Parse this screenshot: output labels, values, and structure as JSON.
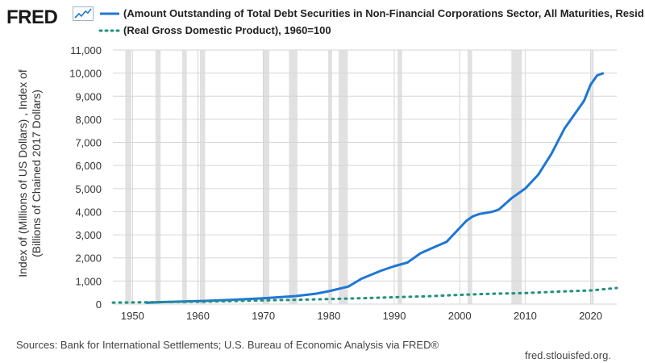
{
  "brand": {
    "logo_text": "FRED"
  },
  "legend": [
    {
      "label": "(Amount Outstanding of Total Debt Securities in Non-Financial Corporations Sector, All Maturities, Resid",
      "color": "#1f77d4",
      "style": "solid"
    },
    {
      "label": "(Real Gross Domestic Product), 1960=100",
      "color": "#23907f",
      "style": "dotted"
    }
  ],
  "footer": {
    "sources": "Sources: Bank for International Settlements; U.S. Bureau of Economic Analysis via FRED®",
    "url": "fred.stlouisfed.org."
  },
  "chart_data": {
    "type": "line",
    "ylabel_line1": "Index of (Millions of US Dollars) , Index of",
    "ylabel_line2": "(Billions of Chained 2017 Dollars)",
    "xlim": [
      1947,
      2024
    ],
    "ylim": [
      0,
      11000
    ],
    "xticks": [
      1950,
      1960,
      1970,
      1980,
      1990,
      2000,
      2010,
      2020
    ],
    "xtick_labels": [
      "1950",
      "1960",
      "1970",
      "1980",
      "1990",
      "2000",
      "2010",
      "2020"
    ],
    "yticks": [
      0,
      1000,
      2000,
      3000,
      4000,
      5000,
      6000,
      7000,
      8000,
      9000,
      10000,
      11000
    ],
    "ytick_labels": [
      "0",
      "1,000",
      "2,000",
      "3,000",
      "4,000",
      "5,000",
      "6,000",
      "7,000",
      "8,000",
      "9,000",
      "10,000",
      "11,000"
    ],
    "grid": true,
    "recessions": [
      [
        1948.9,
        1949.8
      ],
      [
        1953.5,
        1954.3
      ],
      [
        1957.6,
        1958.3
      ],
      [
        1960.3,
        1961.1
      ],
      [
        1969.9,
        1970.9
      ],
      [
        1973.9,
        1975.2
      ],
      [
        1980.0,
        1980.5
      ],
      [
        1981.5,
        1982.9
      ],
      [
        1990.5,
        1991.2
      ],
      [
        2001.2,
        2001.9
      ],
      [
        2007.9,
        2009.5
      ],
      [
        2020.1,
        2020.4
      ]
    ],
    "series": [
      {
        "name": "Debt securities, non-financial corporations",
        "color": "#1f77d4",
        "style": "solid",
        "x": [
          1952,
          1955,
          1960,
          1965,
          1970,
          1975,
          1978,
          1980,
          1983,
          1985,
          1988,
          1990,
          1992,
          1994,
          1996,
          1998,
          2000,
          2001,
          2002,
          2003,
          2004,
          2005,
          2006,
          2008,
          2010,
          2012,
          2014,
          2016,
          2018,
          2019,
          2020,
          2021,
          2022
        ],
        "y": [
          60,
          90,
          130,
          180,
          250,
          350,
          450,
          560,
          760,
          1100,
          1450,
          1640,
          1800,
          2200,
          2450,
          2700,
          3300,
          3600,
          3800,
          3900,
          3950,
          4000,
          4100,
          4600,
          5000,
          5600,
          6500,
          7600,
          8400,
          8800,
          9500,
          9900,
          10000
        ]
      },
      {
        "name": "Real Gross Domestic Product, 1960=100",
        "color": "#23907f",
        "style": "dotted",
        "x": [
          1947,
          1950,
          1955,
          1960,
          1965,
          1970,
          1975,
          1980,
          1985,
          1990,
          1995,
          2000,
          2005,
          2010,
          2015,
          2020,
          2024
        ],
        "y": [
          65,
          75,
          90,
          100,
          130,
          160,
          185,
          220,
          255,
          300,
          340,
          400,
          450,
          480,
          540,
          590,
          700
        ]
      }
    ]
  }
}
